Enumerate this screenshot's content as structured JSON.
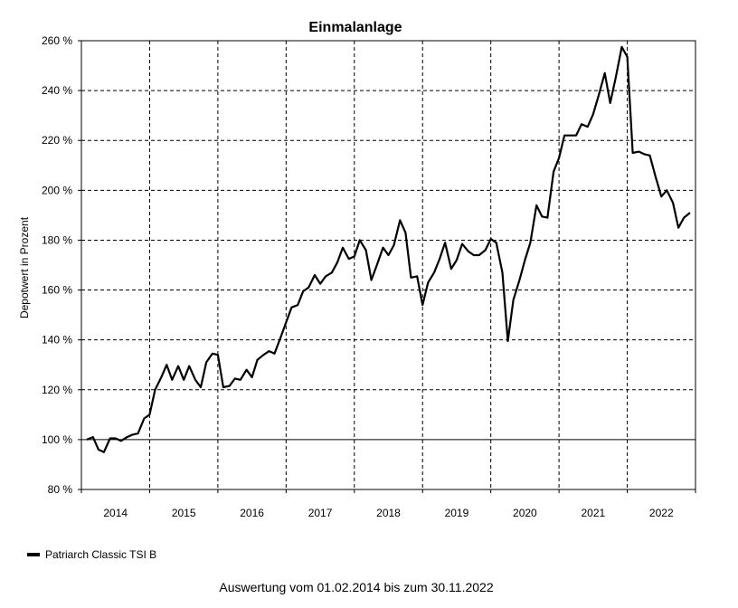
{
  "chart_data": {
    "type": "line",
    "title": "Einmalanlage",
    "ylabel": "Depotwert in Prozent",
    "xlabel": "",
    "ylim": [
      80,
      260
    ],
    "yticks": [
      80,
      100,
      120,
      140,
      160,
      180,
      200,
      220,
      240,
      260
    ],
    "ytick_suffix": " %",
    "x_range": [
      2014.0,
      2023.0
    ],
    "year_labels": [
      "2014",
      "2015",
      "2016",
      "2017",
      "2018",
      "2019",
      "2020",
      "2021",
      "2022"
    ],
    "grid": true,
    "legend_position": "bottom-left",
    "series": [
      {
        "name": "Patriarch Classic TSI B",
        "color": "#000000",
        "points": [
          [
            2014.08,
            100
          ],
          [
            2014.17,
            101
          ],
          [
            2014.25,
            96
          ],
          [
            2014.33,
            95
          ],
          [
            2014.42,
            100.5
          ],
          [
            2014.5,
            100.5
          ],
          [
            2014.58,
            99.5
          ],
          [
            2014.67,
            101
          ],
          [
            2014.75,
            102
          ],
          [
            2014.83,
            102.5
          ],
          [
            2014.92,
            108.5
          ],
          [
            2015.0,
            110
          ],
          [
            2015.08,
            120
          ],
          [
            2015.17,
            125
          ],
          [
            2015.25,
            130
          ],
          [
            2015.33,
            124
          ],
          [
            2015.42,
            129.5
          ],
          [
            2015.5,
            124
          ],
          [
            2015.58,
            129.5
          ],
          [
            2015.67,
            124
          ],
          [
            2015.75,
            121
          ],
          [
            2015.83,
            131
          ],
          [
            2015.92,
            134.5
          ],
          [
            2016.0,
            134
          ],
          [
            2016.08,
            121
          ],
          [
            2016.17,
            121.5
          ],
          [
            2016.25,
            124.5
          ],
          [
            2016.33,
            124
          ],
          [
            2016.42,
            128
          ],
          [
            2016.5,
            125
          ],
          [
            2016.58,
            132
          ],
          [
            2016.67,
            134
          ],
          [
            2016.75,
            135.5
          ],
          [
            2016.83,
            134.5
          ],
          [
            2016.92,
            141
          ],
          [
            2017.0,
            147
          ],
          [
            2017.08,
            153
          ],
          [
            2017.17,
            154
          ],
          [
            2017.25,
            159.5
          ],
          [
            2017.33,
            161
          ],
          [
            2017.42,
            166
          ],
          [
            2017.5,
            162.5
          ],
          [
            2017.58,
            165.5
          ],
          [
            2017.67,
            167
          ],
          [
            2017.75,
            171
          ],
          [
            2017.83,
            177
          ],
          [
            2017.92,
            172.5
          ],
          [
            2018.0,
            173.5
          ],
          [
            2018.08,
            180
          ],
          [
            2018.17,
            176
          ],
          [
            2018.25,
            164
          ],
          [
            2018.33,
            170
          ],
          [
            2018.42,
            177
          ],
          [
            2018.5,
            174
          ],
          [
            2018.58,
            178
          ],
          [
            2018.67,
            188
          ],
          [
            2018.75,
            183
          ],
          [
            2018.83,
            165
          ],
          [
            2018.92,
            165.5
          ],
          [
            2019.0,
            154
          ],
          [
            2019.08,
            163
          ],
          [
            2019.17,
            167
          ],
          [
            2019.25,
            172.5
          ],
          [
            2019.33,
            179
          ],
          [
            2019.42,
            168.5
          ],
          [
            2019.5,
            172
          ],
          [
            2019.58,
            178.5
          ],
          [
            2019.67,
            175.5
          ],
          [
            2019.75,
            174
          ],
          [
            2019.83,
            174
          ],
          [
            2019.92,
            176
          ],
          [
            2020.0,
            180.5
          ],
          [
            2020.08,
            179
          ],
          [
            2020.17,
            167
          ],
          [
            2020.25,
            139.5
          ],
          [
            2020.33,
            156
          ],
          [
            2020.42,
            164
          ],
          [
            2020.5,
            172
          ],
          [
            2020.58,
            179
          ],
          [
            2020.67,
            194
          ],
          [
            2020.75,
            189.5
          ],
          [
            2020.83,
            189
          ],
          [
            2020.92,
            207.5
          ],
          [
            2021.0,
            213
          ],
          [
            2021.08,
            222
          ],
          [
            2021.17,
            222
          ],
          [
            2021.25,
            222
          ],
          [
            2021.33,
            226.5
          ],
          [
            2021.42,
            225.5
          ],
          [
            2021.5,
            230.5
          ],
          [
            2021.58,
            238
          ],
          [
            2021.67,
            247
          ],
          [
            2021.75,
            235
          ],
          [
            2021.83,
            245
          ],
          [
            2021.92,
            257.5
          ],
          [
            2022.0,
            253.5
          ],
          [
            2022.08,
            215
          ],
          [
            2022.17,
            215.5
          ],
          [
            2022.25,
            214.5
          ],
          [
            2022.33,
            214
          ],
          [
            2022.42,
            205
          ],
          [
            2022.5,
            197.5
          ],
          [
            2022.58,
            200
          ],
          [
            2022.67,
            195
          ],
          [
            2022.75,
            185
          ],
          [
            2022.83,
            189
          ],
          [
            2022.92,
            191
          ]
        ]
      }
    ]
  },
  "footer": {
    "evaluation_text": "Auswertung vom 01.02.2014 bis zum 30.11.2022"
  }
}
